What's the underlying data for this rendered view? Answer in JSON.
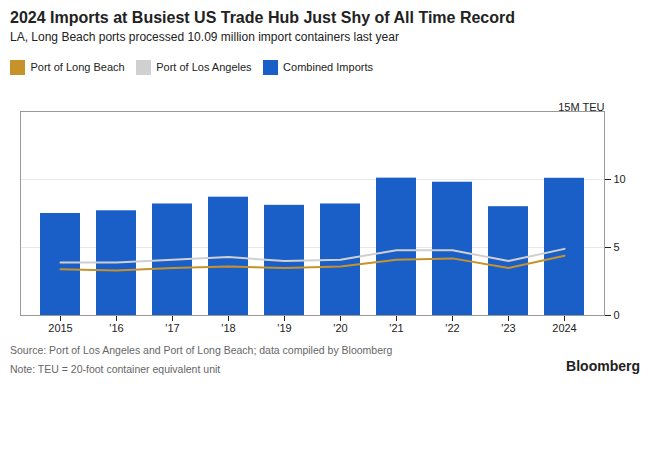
{
  "chart_data": {
    "type": "bar",
    "title": "2024 Imports at Busiest US Trade Hub Just Shy of All Time Record",
    "subtitle": "LA, Long Beach ports processed 10.09 million import containers last year",
    "annotations": [
      "15M TEU"
    ],
    "source": "Source: Port of Los Angeles and Port of Long Beach; data compiled by Bloomberg",
    "note": "Note: TEU = 20-foot container equivalent unit",
    "credit": "Bloomberg",
    "categories": [
      "2015",
      "'16",
      "'17",
      "'18",
      "'19",
      "'20",
      "'21",
      "'22",
      "'23",
      "2024"
    ],
    "series": [
      {
        "name": "Port of Long Beach",
        "type": "line",
        "color": "#c8922a",
        "values": [
          3.4,
          3.3,
          3.5,
          3.6,
          3.5,
          3.6,
          4.1,
          4.2,
          3.5,
          4.4
        ]
      },
      {
        "name": "Port of Los Angeles",
        "type": "line",
        "color": "#d0d0d0",
        "values": [
          3.9,
          3.9,
          4.1,
          4.3,
          4.0,
          4.1,
          4.8,
          4.8,
          4.0,
          4.9
        ]
      },
      {
        "name": "Combined Imports",
        "type": "bar",
        "color": "#1a5fc8",
        "values": [
          7.5,
          7.7,
          8.2,
          8.7,
          8.1,
          8.2,
          10.1,
          9.8,
          8.0,
          10.09
        ]
      }
    ],
    "ylim": [
      0,
      15
    ],
    "yticks": [
      0,
      5,
      10
    ],
    "grid": true,
    "legend": "top-left"
  }
}
